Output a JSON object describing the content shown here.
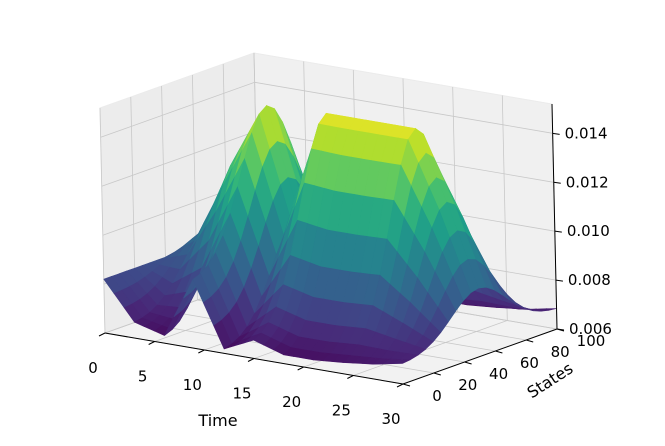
{
  "chart_data": {
    "type": "surface3d",
    "title": "",
    "colormap": "viridis",
    "grid": true,
    "x_axis": {
      "label": "Time",
      "range": [
        0,
        30
      ],
      "ticks": [
        "0",
        "5",
        "10",
        "15",
        "20",
        "25",
        "30"
      ]
    },
    "y_axis": {
      "label": "States",
      "range": [
        0,
        100
      ],
      "ticks": [
        "0",
        "20",
        "40",
        "60",
        "80",
        "100"
      ]
    },
    "z_axis": {
      "label": "",
      "range": [
        0.006,
        0.0152
      ],
      "ticks": [
        "0.006",
        "0.008",
        "0.010",
        "0.012",
        "0.014"
      ]
    },
    "surface": {
      "time_points": [
        0,
        3,
        6,
        9,
        12,
        15,
        18,
        21,
        24,
        27,
        30
      ],
      "state_points": [
        0,
        10,
        20,
        30,
        40,
        50,
        60,
        70,
        80,
        90,
        100
      ],
      "z_min_by_time": [
        0.0082,
        0.0066,
        0.0062,
        0.0087,
        0.0061,
        0.0066,
        0.0062,
        0.0062,
        0.0063,
        0.0065,
        0.0068
      ],
      "z_max_by_time": [
        0.0082,
        0.0095,
        0.0125,
        0.0148,
        0.0106,
        0.0149,
        0.0149,
        0.0149,
        0.0149,
        0.0121,
        0.0088
      ],
      "note": ""
    }
  }
}
